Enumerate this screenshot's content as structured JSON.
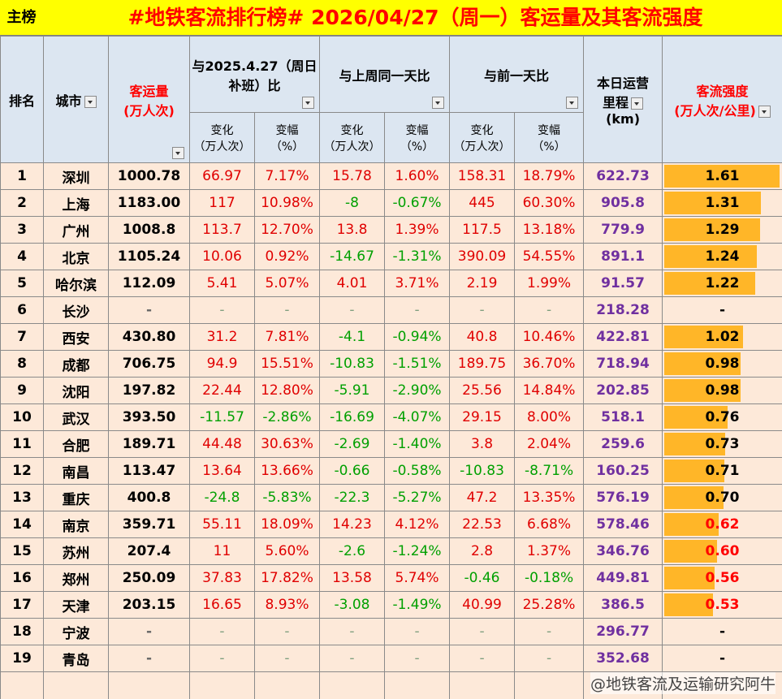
{
  "header": {
    "tag": "主榜",
    "title": "#地铁客流排行榜# 2026/04/27（周一）客运量及其客流强度"
  },
  "table": {
    "columns": {
      "rank": "排名",
      "city": "城市",
      "volume": [
        "客运量",
        "(万人次)"
      ],
      "vs_2025": [
        "与2025.4.27（周日",
        "补班）比"
      ],
      "vs_week": "与上周同一天比",
      "vs_prev": "与前一天比",
      "mileage": [
        "本日运营",
        "里程",
        "(km)"
      ],
      "intensity": [
        "客流强度",
        "(万人次/公里)"
      ]
    },
    "sub_headers": [
      [
        "变化",
        "（万人次）"
      ],
      [
        "变幅",
        "（%）"
      ],
      [
        "变化",
        "（万人次）"
      ],
      [
        "变幅",
        "（%）"
      ],
      [
        "变化",
        "（万人次）"
      ],
      [
        "变幅",
        "（%）"
      ]
    ],
    "rows": [
      {
        "rank": "1",
        "city": "深圳",
        "volume": "1000.78",
        "c1": "66.97",
        "p1": "7.17%",
        "c2": "15.78",
        "p2": "1.60%",
        "c3": "158.31",
        "p3": "18.79%",
        "mileage": "622.73",
        "intensity": "1.61",
        "intensity_color": "#000000"
      },
      {
        "rank": "2",
        "city": "上海",
        "volume": "1183.00",
        "c1": "117",
        "p1": "10.98%",
        "c2": "-8",
        "p2": "-0.67%",
        "c3": "445",
        "p3": "60.30%",
        "mileage": "905.8",
        "intensity": "1.31",
        "intensity_color": "#000000"
      },
      {
        "rank": "3",
        "city": "广州",
        "volume": "1008.8",
        "c1": "113.7",
        "p1": "12.70%",
        "c2": "13.8",
        "p2": "1.39%",
        "c3": "117.5",
        "p3": "13.18%",
        "mileage": "779.9",
        "intensity": "1.29",
        "intensity_color": "#000000"
      },
      {
        "rank": "4",
        "city": "北京",
        "volume": "1105.24",
        "c1": "10.06",
        "p1": "0.92%",
        "c2": "-14.67",
        "p2": "-1.31%",
        "c3": "390.09",
        "p3": "54.55%",
        "mileage": "891.1",
        "intensity": "1.24",
        "intensity_color": "#000000"
      },
      {
        "rank": "5",
        "city": "哈尔滨",
        "volume": "112.09",
        "c1": "5.41",
        "p1": "5.07%",
        "c2": "4.01",
        "p2": "3.71%",
        "c3": "2.19",
        "p3": "1.99%",
        "mileage": "91.57",
        "intensity": "1.22",
        "intensity_color": "#000000"
      },
      {
        "rank": "6",
        "city": "长沙",
        "volume": "-",
        "c1": "-",
        "p1": "-",
        "c2": "-",
        "p2": "-",
        "c3": "-",
        "p3": "-",
        "mileage": "218.28",
        "intensity": "-",
        "intensity_color": "#000000"
      },
      {
        "rank": "7",
        "city": "西安",
        "volume": "430.80",
        "c1": "31.2",
        "p1": "7.81%",
        "c2": "-4.1",
        "p2": "-0.94%",
        "c3": "40.8",
        "p3": "10.46%",
        "mileage": "422.81",
        "intensity": "1.02",
        "intensity_color": "#000000"
      },
      {
        "rank": "8",
        "city": "成都",
        "volume": "706.75",
        "c1": "94.9",
        "p1": "15.51%",
        "c2": "-10.83",
        "p2": "-1.51%",
        "c3": "189.75",
        "p3": "36.70%",
        "mileage": "718.94",
        "intensity": "0.98",
        "intensity_color": "#000000"
      },
      {
        "rank": "9",
        "city": "沈阳",
        "volume": "197.82",
        "c1": "22.44",
        "p1": "12.80%",
        "c2": "-5.91",
        "p2": "-2.90%",
        "c3": "25.56",
        "p3": "14.84%",
        "mileage": "202.85",
        "intensity": "0.98",
        "intensity_color": "#000000"
      },
      {
        "rank": "10",
        "city": "武汉",
        "volume": "393.50",
        "c1": "-11.57",
        "p1": "-2.86%",
        "c2": "-16.69",
        "p2": "-4.07%",
        "c3": "29.15",
        "p3": "8.00%",
        "mileage": "518.1",
        "intensity": "0.76",
        "intensity_color": "#000000"
      },
      {
        "rank": "11",
        "city": "合肥",
        "volume": "189.71",
        "c1": "44.48",
        "p1": "30.63%",
        "c2": "-2.69",
        "p2": "-1.40%",
        "c3": "3.8",
        "p3": "2.04%",
        "mileage": "259.6",
        "intensity": "0.73",
        "intensity_color": "#000000"
      },
      {
        "rank": "12",
        "city": "南昌",
        "volume": "113.47",
        "c1": "13.64",
        "p1": "13.66%",
        "c2": "-0.66",
        "p2": "-0.58%",
        "c3": "-10.83",
        "p3": "-8.71%",
        "mileage": "160.25",
        "intensity": "0.71",
        "intensity_color": "#000000"
      },
      {
        "rank": "13",
        "city": "重庆",
        "volume": "400.8",
        "c1": "-24.8",
        "p1": "-5.83%",
        "c2": "-22.3",
        "p2": "-5.27%",
        "c3": "47.2",
        "p3": "13.35%",
        "mileage": "576.19",
        "intensity": "0.70",
        "intensity_color": "#000000"
      },
      {
        "rank": "14",
        "city": "南京",
        "volume": "359.71",
        "c1": "55.11",
        "p1": "18.09%",
        "c2": "14.23",
        "p2": "4.12%",
        "c3": "22.53",
        "p3": "6.68%",
        "mileage": "578.46",
        "intensity": "0.62",
        "intensity_color": "#ff0000"
      },
      {
        "rank": "15",
        "city": "苏州",
        "volume": "207.4",
        "c1": "11",
        "p1": "5.60%",
        "c2": "-2.6",
        "p2": "-1.24%",
        "c3": "2.8",
        "p3": "1.37%",
        "mileage": "346.76",
        "intensity": "0.60",
        "intensity_color": "#ff0000"
      },
      {
        "rank": "16",
        "city": "郑州",
        "volume": "250.09",
        "c1": "37.83",
        "p1": "17.82%",
        "c2": "13.58",
        "p2": "5.74%",
        "c3": "-0.46",
        "p3": "-0.18%",
        "mileage": "449.81",
        "intensity": "0.56",
        "intensity_color": "#ff0000"
      },
      {
        "rank": "17",
        "city": "天津",
        "volume": "203.15",
        "c1": "16.65",
        "p1": "8.93%",
        "c2": "-3.08",
        "p2": "-1.49%",
        "c3": "40.99",
        "p3": "25.28%",
        "mileage": "386.5",
        "intensity": "0.53",
        "intensity_color": "#ff0000"
      },
      {
        "rank": "18",
        "city": "宁波",
        "volume": "-",
        "c1": "-",
        "p1": "-",
        "c2": "-",
        "p2": "-",
        "c3": "-",
        "p3": "-",
        "mileage": "296.77",
        "intensity": "-",
        "intensity_color": "#000000"
      },
      {
        "rank": "19",
        "city": "青岛",
        "volume": "-",
        "c1": "-",
        "p1": "-",
        "c2": "-",
        "p2": "-",
        "c3": "-",
        "p3": "-",
        "mileage": "352.68",
        "intensity": "-",
        "intensity_color": "#000000"
      }
    ]
  },
  "watermark": "@地铁客流及运输研究阿牛"
}
